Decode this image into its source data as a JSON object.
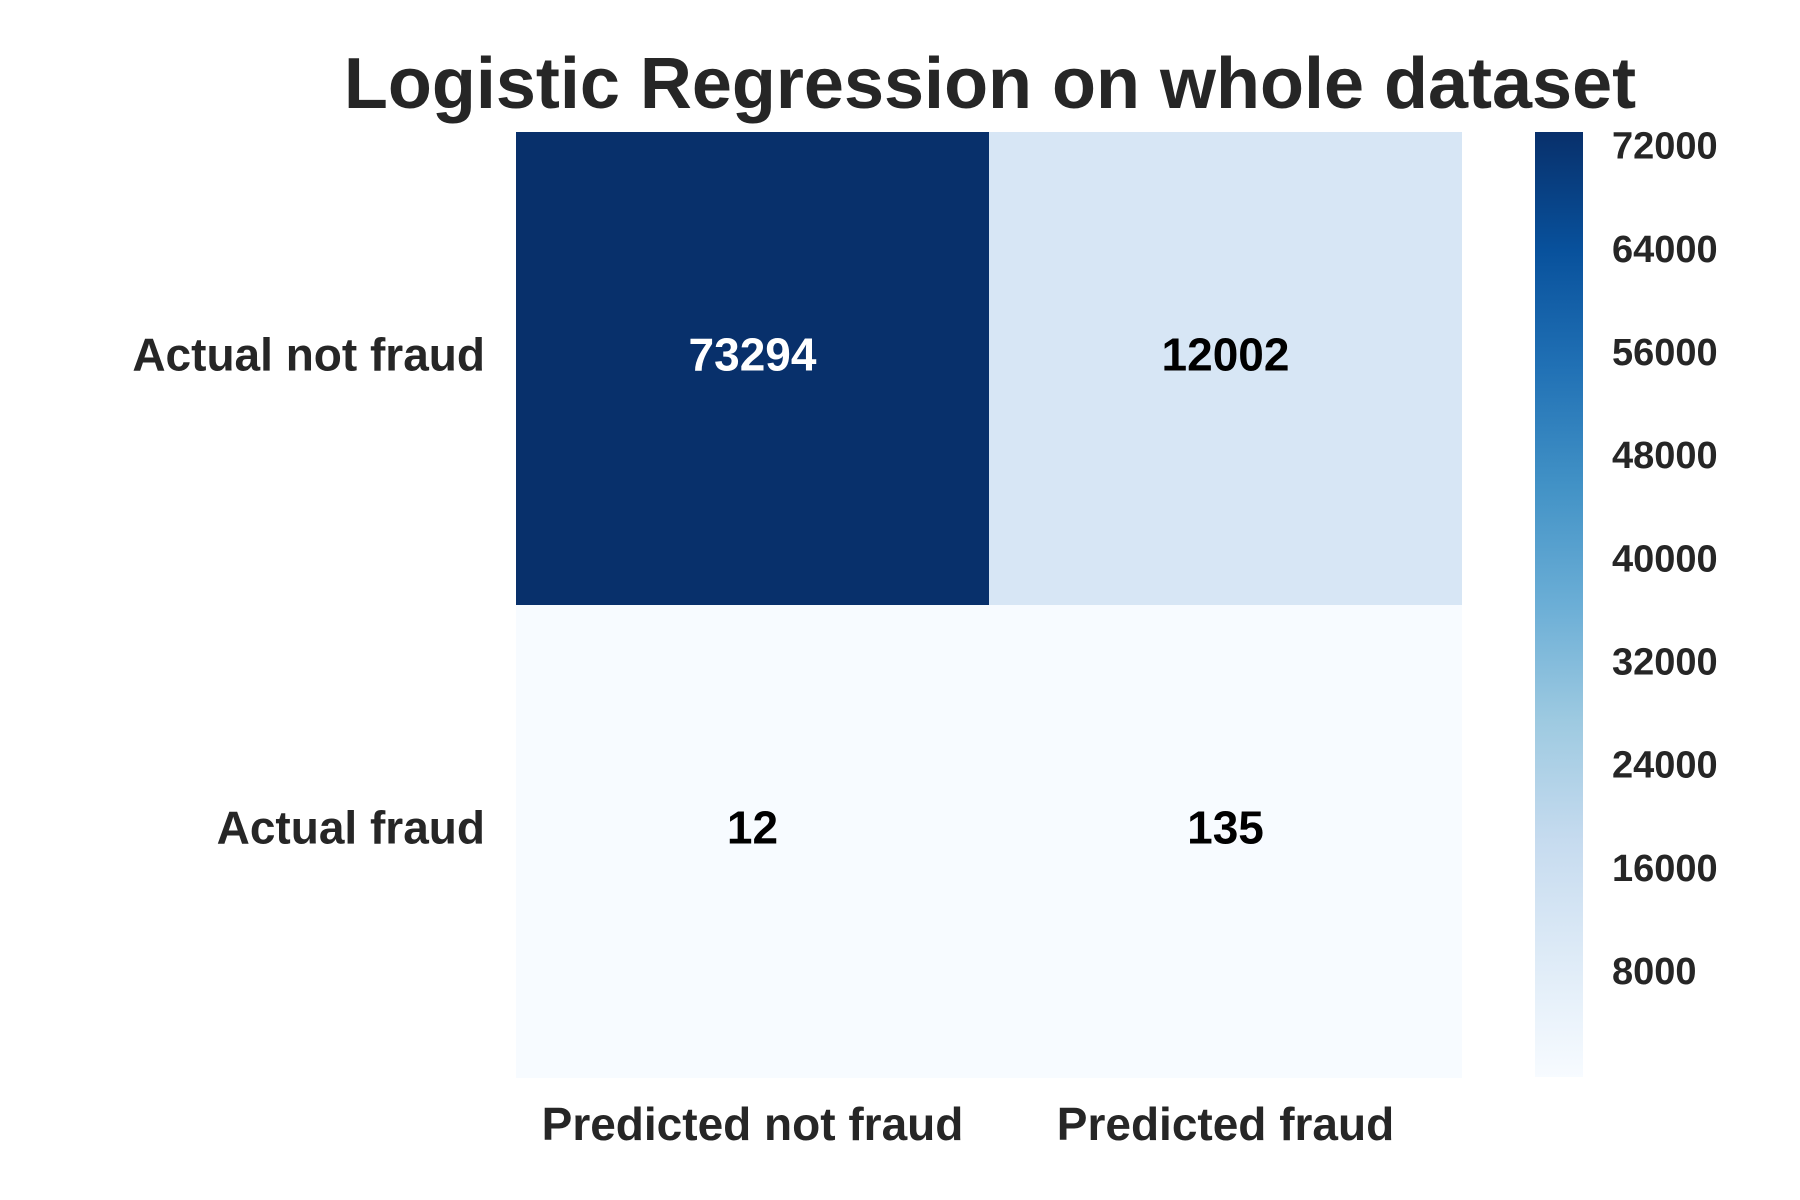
{
  "chart_data": {
    "type": "heatmap",
    "title": "Logistic Regression on whole dataset",
    "xlabel": "",
    "ylabel": "",
    "x_categories": [
      "Predicted not fraud",
      "Predicted fraud"
    ],
    "y_categories": [
      "Actual not fraud",
      "Actual fraud"
    ],
    "values": [
      [
        73294,
        12002
      ],
      [
        12,
        135
      ]
    ],
    "colormap": "Blues",
    "colorbar": {
      "min": 12,
      "max": 73294,
      "ticks": [
        72000,
        64000,
        56000,
        48000,
        40000,
        32000,
        24000,
        16000,
        8000
      ]
    },
    "colors": {
      "low": "#f7fbff",
      "high": "#08306b",
      "text_dark": "#000000",
      "text_light": "#ffffff",
      "label": "#262626"
    }
  }
}
